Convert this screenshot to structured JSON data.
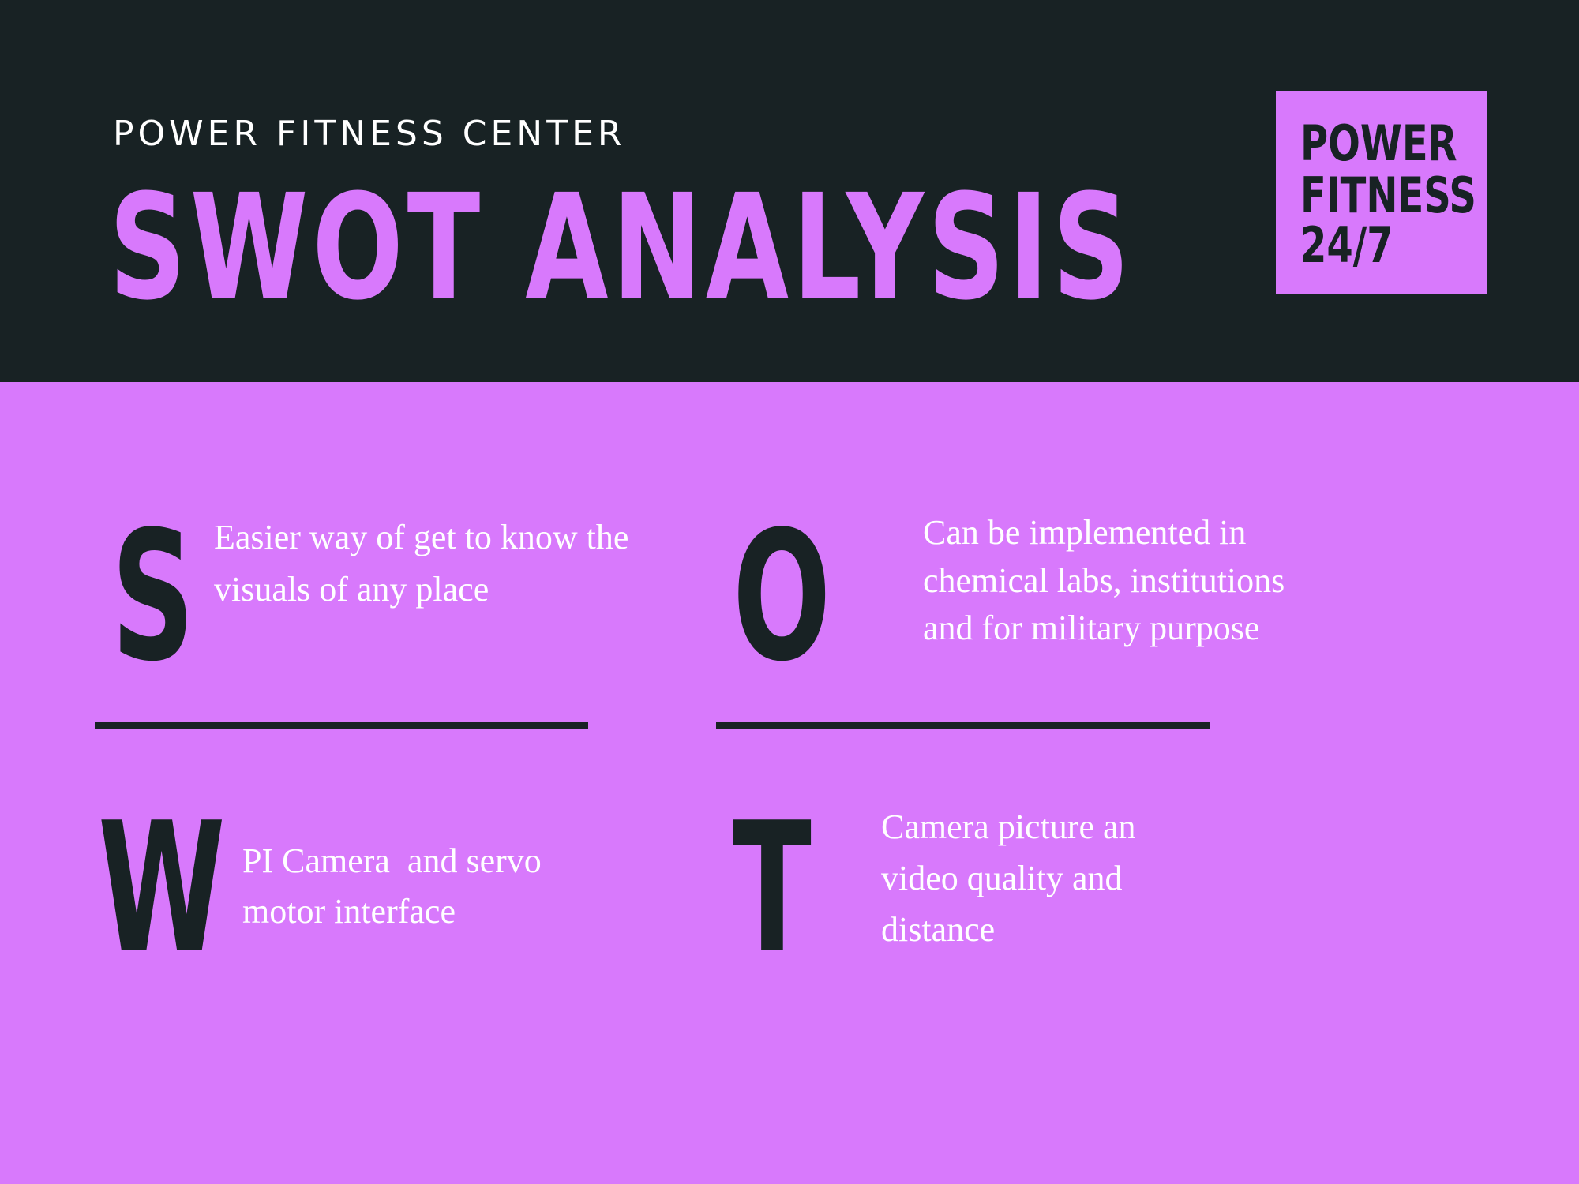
{
  "header": {
    "subtitle": "POWER FITNESS CENTER",
    "title": "SWOT ANALYSIS",
    "logo": {
      "line1": "POWER",
      "line2": "FITNESS",
      "line3": "24/7"
    }
  },
  "swot": {
    "strengths": {
      "letter": "S",
      "text": "Easier way of get to know the\nvisuals of any place"
    },
    "opportunities": {
      "letter": "O",
      "text": "Can be implemented in\nchemical labs, institutions\nand for military purpose"
    },
    "weaknesses": {
      "letter": "W",
      "text": "PI Camera  and servo\nmotor interface"
    },
    "threats": {
      "letter": "T",
      "text": "Camera picture an\nvideo quality and\ndistance"
    }
  },
  "colors": {
    "accent": "#d879fc",
    "dark": "#182224",
    "text_light": "#ffffff"
  }
}
